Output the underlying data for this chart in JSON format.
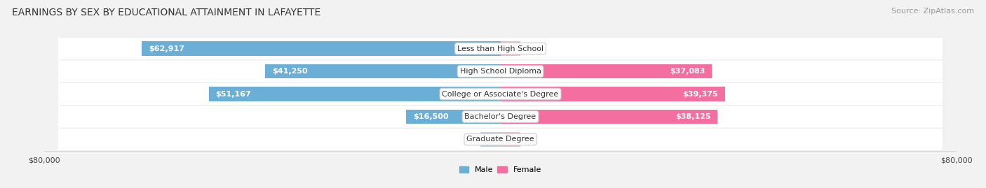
{
  "title": "EARNINGS BY SEX BY EDUCATIONAL ATTAINMENT IN LAFAYETTE",
  "source": "Source: ZipAtlas.com",
  "categories": [
    "Less than High School",
    "High School Diploma",
    "College or Associate's Degree",
    "Bachelor's Degree",
    "Graduate Degree"
  ],
  "male_values": [
    62917,
    41250,
    51167,
    16500,
    0
  ],
  "female_values": [
    0,
    37083,
    39375,
    38125,
    0
  ],
  "male_color": "#6baed6",
  "female_color": "#f46fa0",
  "male_color_light": "#b8d4ea",
  "female_color_light": "#f9b8cc",
  "axis_max": 80000,
  "bg_color": "#f2f2f2",
  "row_bg": "#ffffff",
  "xlabel_left": "$80,000",
  "xlabel_right": "$80,000",
  "legend_male": "Male",
  "legend_female": "Female",
  "title_fontsize": 10,
  "source_fontsize": 8,
  "label_fontsize": 8,
  "category_fontsize": 8,
  "stub_value": 3500
}
